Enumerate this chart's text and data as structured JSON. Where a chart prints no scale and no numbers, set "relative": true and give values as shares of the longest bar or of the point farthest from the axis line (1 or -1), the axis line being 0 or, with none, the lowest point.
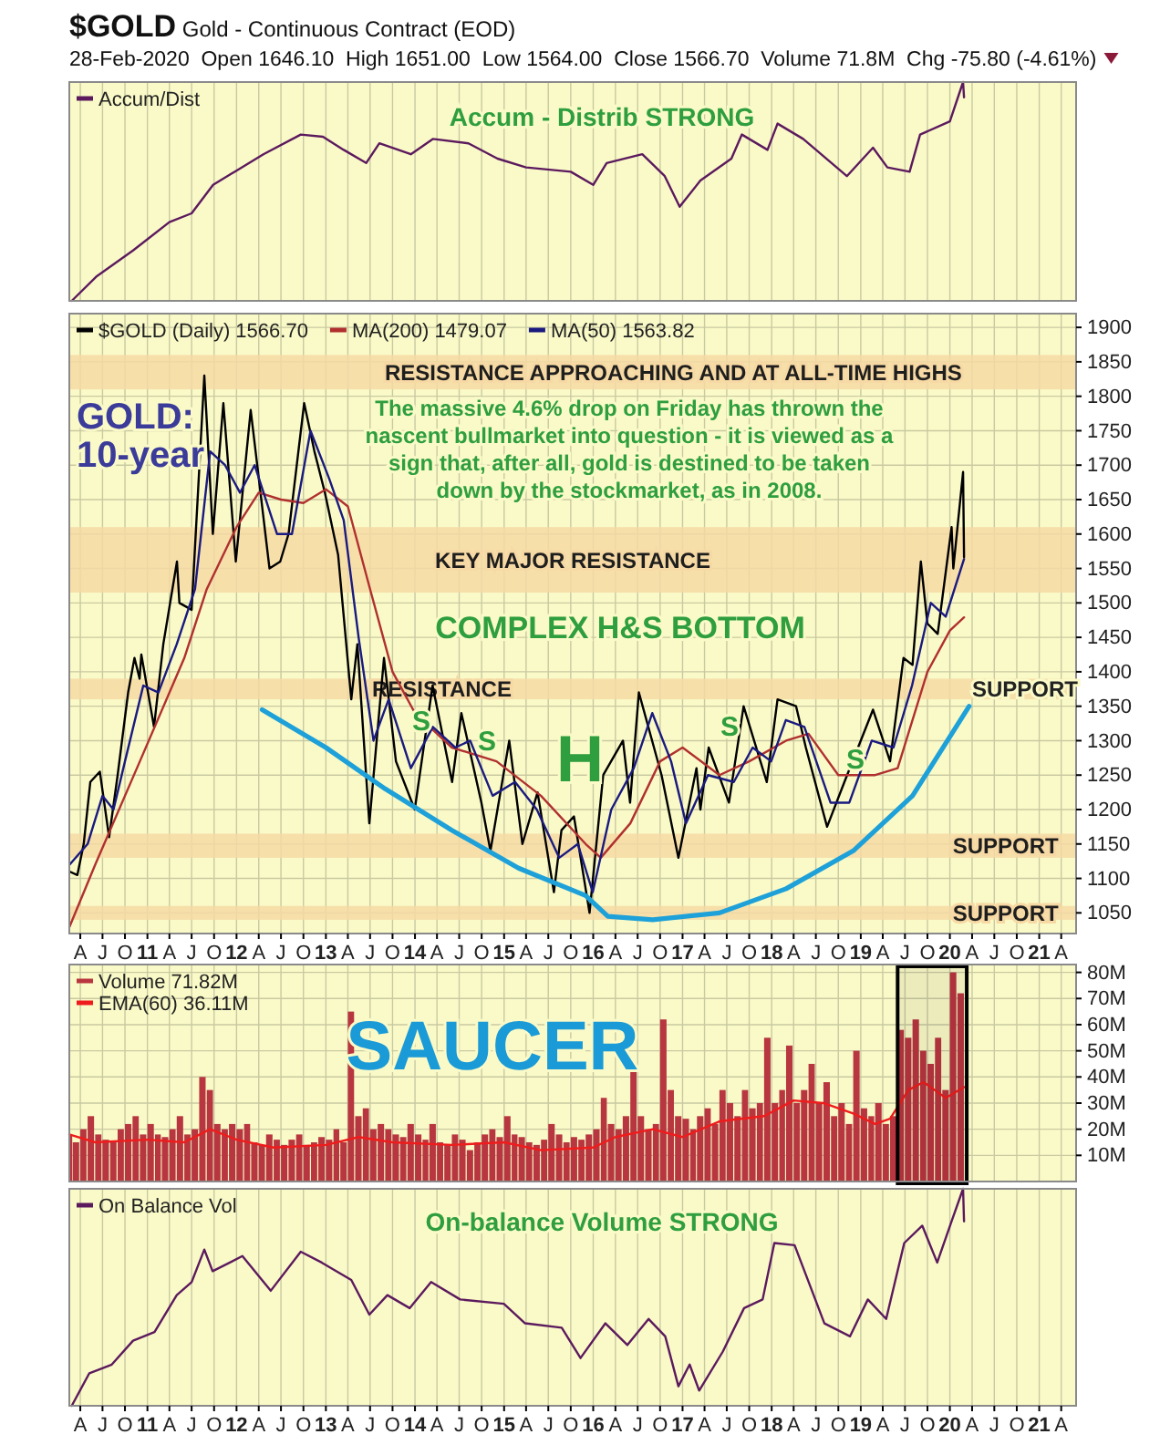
{
  "chart_data": [
    {
      "type": "line",
      "title": "$GOLD Gold - Continuous Contract (EOD)",
      "subtitle": "28-Feb-2020  Open 1646.10  High 1651.00  Low 1564.00  Close 1566.70  Volume 71.8M  Chg -75.80 (-4.61%)",
      "relative": true,
      "grid": "x",
      "legend": "top left",
      "tick_labels": false,
      "xlim": [
        "2010-02-15",
        "2021-06-01"
      ],
      "xticks": [
        {
          "value": "2010-04",
          "label": null
        },
        {
          "value": "2010-07",
          "label": null
        },
        {
          "value": "2010-10",
          "label": null
        },
        {
          "value": "2011-01",
          "label": null
        },
        {
          "value": "2011-04",
          "label": null
        },
        {
          "value": "2011-07",
          "label": null
        },
        {
          "value": "2011-10",
          "label": null
        },
        {
          "value": "2012-01",
          "label": null
        },
        {
          "value": "2012-04",
          "label": null
        },
        {
          "value": "2012-07",
          "label": null
        },
        {
          "value": "2012-10",
          "label": null
        },
        {
          "value": "2013-01",
          "label": null
        },
        {
          "value": "2013-04",
          "label": null
        },
        {
          "value": "2013-07",
          "label": null
        },
        {
          "value": "2013-10",
          "label": null
        },
        {
          "value": "2014-01",
          "label": null
        },
        {
          "value": "2014-04",
          "label": null
        },
        {
          "value": "2014-07",
          "label": null
        },
        {
          "value": "2014-10",
          "label": null
        },
        {
          "value": "2015-01",
          "label": null
        },
        {
          "value": "2015-04",
          "label": null
        },
        {
          "value": "2015-07",
          "label": null
        },
        {
          "value": "2015-10",
          "label": null
        },
        {
          "value": "2016-01",
          "label": null
        },
        {
          "value": "2016-04",
          "label": null
        },
        {
          "value": "2016-07",
          "label": null
        },
        {
          "value": "2016-10",
          "label": null
        },
        {
          "value": "2017-01",
          "label": null
        },
        {
          "value": "2017-04",
          "label": null
        },
        {
          "value": "2017-07",
          "label": null
        },
        {
          "value": "2017-10",
          "label": null
        },
        {
          "value": "2018-01",
          "label": null
        },
        {
          "value": "2018-04",
          "label": null
        },
        {
          "value": "2018-07",
          "label": null
        },
        {
          "value": "2018-10",
          "label": null
        },
        {
          "value": "2019-01",
          "label": null
        },
        {
          "value": "2019-04",
          "label": null
        },
        {
          "value": "2019-07",
          "label": null
        },
        {
          "value": "2019-10",
          "label": null
        },
        {
          "value": "2020-01",
          "label": null
        },
        {
          "value": "2020-04",
          "label": null
        },
        {
          "value": "2020-07",
          "label": null
        },
        {
          "value": "2020-10",
          "label": null
        },
        {
          "value": "2021-01",
          "label": null
        },
        {
          "value": "2021-04",
          "label": null
        }
      ],
      "x": [
        "2010-02-25",
        "2010-06-05",
        "2010-11-03",
        "2011-04-01",
        "2011-07-01",
        "2011-09-27",
        "2011-12-24",
        "2012-04-20",
        "2012-09-20",
        "2012-12-20",
        "2013-03-15",
        "2013-06-15",
        "2013-08-08",
        "2013-12-15",
        "2014-03-15",
        "2014-08-08",
        "2014-12-05",
        "2015-04-01",
        "2015-10-01",
        "2016-01-01",
        "2016-02-25",
        "2016-07-20",
        "2016-10-20",
        "2016-12-20",
        "2017-03-15",
        "2017-07-20",
        "2017-09-01",
        "2017-12-15",
        "2018-01-25",
        "2018-05-10",
        "2018-11-05",
        "2019-02-20",
        "2019-04-20",
        "2019-07-20",
        "2019-09-01",
        "2020-01-01",
        "2020-02-24",
        "2020-02-28"
      ],
      "series": [
        {
          "name": "Accum/Dist",
          "color": "#5c1a5e",
          "values": [
            0,
            0.11,
            0.23,
            0.36,
            0.4,
            0.53,
            0.59,
            0.67,
            0.76,
            0.75,
            0.69,
            0.63,
            0.72,
            0.67,
            0.74,
            0.72,
            0.65,
            0.61,
            0.59,
            0.53,
            0.63,
            0.67,
            0.57,
            0.43,
            0.55,
            0.65,
            0.76,
            0.69,
            0.81,
            0.74,
            0.57,
            0.7,
            0.61,
            0.59,
            0.76,
            0.82,
            1,
            0.93
          ]
        }
      ],
      "annotations": [
        "Accum - Distrib STRONG"
      ]
    },
    {
      "type": "line",
      "grid": true,
      "legend": "top left",
      "xlim": [
        "2010-02-15",
        "2021-06-01"
      ],
      "xticks": [
        {
          "value": "2010-04",
          "label": "A"
        },
        {
          "value": "2010-07",
          "label": "J"
        },
        {
          "value": "2010-10",
          "label": "O"
        },
        {
          "value": "2011-01",
          "label": "11"
        },
        {
          "value": "2011-04",
          "label": "A"
        },
        {
          "value": "2011-07",
          "label": "J"
        },
        {
          "value": "2011-10",
          "label": "O"
        },
        {
          "value": "2012-01",
          "label": "12"
        },
        {
          "value": "2012-04",
          "label": "A"
        },
        {
          "value": "2012-07",
          "label": "J"
        },
        {
          "value": "2012-10",
          "label": "O"
        },
        {
          "value": "2013-01",
          "label": "13"
        },
        {
          "value": "2013-04",
          "label": "A"
        },
        {
          "value": "2013-07",
          "label": "J"
        },
        {
          "value": "2013-10",
          "label": "O"
        },
        {
          "value": "2014-01",
          "label": "14"
        },
        {
          "value": "2014-04",
          "label": "A"
        },
        {
          "value": "2014-07",
          "label": "J"
        },
        {
          "value": "2014-10",
          "label": "O"
        },
        {
          "value": "2015-01",
          "label": "15"
        },
        {
          "value": "2015-04",
          "label": "A"
        },
        {
          "value": "2015-07",
          "label": "J"
        },
        {
          "value": "2015-10",
          "label": "O"
        },
        {
          "value": "2016-01",
          "label": "16"
        },
        {
          "value": "2016-04",
          "label": "A"
        },
        {
          "value": "2016-07",
          "label": "J"
        },
        {
          "value": "2016-10",
          "label": "O"
        },
        {
          "value": "2017-01",
          "label": "17"
        },
        {
          "value": "2017-04",
          "label": "A"
        },
        {
          "value": "2017-07",
          "label": "J"
        },
        {
          "value": "2017-10",
          "label": "O"
        },
        {
          "value": "2018-01",
          "label": "18"
        },
        {
          "value": "2018-04",
          "label": "A"
        },
        {
          "value": "2018-07",
          "label": "J"
        },
        {
          "value": "2018-10",
          "label": "O"
        },
        {
          "value": "2019-01",
          "label": "19"
        },
        {
          "value": "2019-04",
          "label": "A"
        },
        {
          "value": "2019-07",
          "label": "J"
        },
        {
          "value": "2019-10",
          "label": "O"
        },
        {
          "value": "2020-01",
          "label": "20"
        },
        {
          "value": "2020-04",
          "label": "A"
        },
        {
          "value": "2020-07",
          "label": "J"
        },
        {
          "value": "2020-10",
          "label": "O"
        },
        {
          "value": "2021-01",
          "label": "21"
        },
        {
          "value": "2021-04",
          "label": "A"
        }
      ],
      "ylim": [
        1020,
        1920
      ],
      "yticks": [
        1050,
        1100,
        1150,
        1200,
        1250,
        1300,
        1350,
        1400,
        1450,
        1500,
        1550,
        1600,
        1650,
        1700,
        1750,
        1800,
        1850,
        1900
      ],
      "bands": [
        {
          "axis": "y",
          "from": 1810,
          "to": 1860,
          "label": "RESISTANCE APPROACHING AND AT ALL-TIME HIGHS",
          "color": "#f6d9a4"
        },
        {
          "axis": "y",
          "from": 1515,
          "to": 1610,
          "label": "KEY MAJOR RESISTANCE",
          "color": "#f6d9a4"
        },
        {
          "axis": "y",
          "from": 1360,
          "to": 1390,
          "label": "RESISTANCE",
          "color": "#f6d9a4"
        },
        {
          "axis": "y",
          "from": 1130,
          "to": 1165,
          "label": "SUPPORT",
          "color": "#f6d9a4"
        },
        {
          "axis": "y",
          "from": 1040,
          "to": 1060,
          "label": "SUPPORT",
          "color": "#f6d9a4"
        }
      ],
      "series": [
        {
          "name": "$GOLD (Daily) 1566.70",
          "color": "#000000",
          "x": [
            "2010-02-16",
            "2010-03-20",
            "2010-04-15",
            "2010-05-12",
            "2010-06-20",
            "2010-07-28",
            "2010-09-01",
            "2010-10-14",
            "2010-11-09",
            "2010-11-30",
            "2010-12-07",
            "2011-01-28",
            "2011-03-07",
            "2011-05-02",
            "2011-05-12",
            "2011-07-01",
            "2011-08-22",
            "2011-09-26",
            "2011-11-08",
            "2011-12-29",
            "2012-02-28",
            "2012-05-15",
            "2012-06-28",
            "2012-08-01",
            "2012-10-04",
            "2012-11-15",
            "2012-12-28",
            "2013-02-20",
            "2013-04-15",
            "2013-05-10",
            "2013-06-28",
            "2013-08-27",
            "2013-10-15",
            "2013-12-31",
            "2014-03-14",
            "2014-06-02",
            "2014-07-10",
            "2014-09-30",
            "2014-11-06",
            "2015-01-22",
            "2015-03-17",
            "2015-05-18",
            "2015-07-24",
            "2015-08-24",
            "2015-10-14",
            "2015-12-17",
            "2016-02-11",
            "2016-05-02",
            "2016-05-31",
            "2016-07-06",
            "2016-10-07",
            "2016-12-15",
            "2017-02-27",
            "2017-03-15",
            "2017-04-18",
            "2017-07-10",
            "2017-09-08",
            "2017-12-12",
            "2018-01-25",
            "2018-04-11",
            "2018-05-21",
            "2018-08-16",
            "2018-10-26",
            "2019-02-20",
            "2019-05-01",
            "2019-06-25",
            "2019-08-01",
            "2019-09-04",
            "2019-10-01",
            "2019-11-12",
            "2020-01-08",
            "2020-01-15",
            "2020-02-24",
            "2020-02-28"
          ],
          "values": [
            1110,
            1105,
            1150,
            1240,
            1255,
            1160,
            1250,
            1370,
            1420,
            1390,
            1425,
            1320,
            1440,
            1560,
            1500,
            1490,
            1830,
            1600,
            1790,
            1560,
            1780,
            1550,
            1560,
            1600,
            1790,
            1720,
            1660,
            1570,
            1360,
            1440,
            1180,
            1420,
            1270,
            1200,
            1380,
            1240,
            1340,
            1210,
            1140,
            1300,
            1150,
            1225,
            1080,
            1170,
            1190,
            1050,
            1250,
            1300,
            1210,
            1370,
            1250,
            1130,
            1260,
            1200,
            1290,
            1210,
            1350,
            1240,
            1360,
            1350,
            1290,
            1175,
            1240,
            1345,
            1270,
            1420,
            1410,
            1560,
            1470,
            1455,
            1610,
            1550,
            1690,
            1566.7
          ]
        },
        {
          "name": "MA(200) 1479.07",
          "color": "#b03030",
          "x": [
            "2010-02-16",
            "2010-06-01",
            "2010-12-01",
            "2011-06-01",
            "2011-09-01",
            "2012-01-01",
            "2012-04-01",
            "2012-07-01",
            "2012-10-01",
            "2013-01-01",
            "2013-04-01",
            "2013-07-01",
            "2013-10-01",
            "2014-01-01",
            "2014-06-01",
            "2014-12-01",
            "2015-06-01",
            "2015-12-01",
            "2016-02-01",
            "2016-06-01",
            "2016-10-01",
            "2017-01-01",
            "2017-06-01",
            "2017-10-01",
            "2018-03-01",
            "2018-06-01",
            "2018-10-01",
            "2019-03-01",
            "2019-06-01",
            "2019-10-01",
            "2020-01-01",
            "2020-02-28"
          ],
          "values": [
            1030,
            1120,
            1270,
            1420,
            1520,
            1610,
            1660,
            1650,
            1645,
            1665,
            1640,
            1520,
            1400,
            1340,
            1290,
            1270,
            1220,
            1150,
            1130,
            1180,
            1270,
            1290,
            1250,
            1270,
            1300,
            1310,
            1250,
            1250,
            1260,
            1400,
            1460,
            1479.07
          ]
        },
        {
          "name": "MA(50) 1563.82",
          "color": "#1a1a80",
          "x": [
            "2010-02-16",
            "2010-05-01",
            "2010-07-01",
            "2010-08-15",
            "2010-10-01",
            "2010-12-15",
            "2011-02-15",
            "2011-05-01",
            "2011-07-15",
            "2011-09-15",
            "2011-11-15",
            "2012-01-15",
            "2012-03-15",
            "2012-06-15",
            "2012-08-15",
            "2012-10-30",
            "2013-01-15",
            "2013-03-15",
            "2013-05-15",
            "2013-07-15",
            "2013-09-15",
            "2013-12-15",
            "2014-03-15",
            "2014-06-15",
            "2014-08-15",
            "2014-11-15",
            "2015-02-15",
            "2015-05-15",
            "2015-08-15",
            "2015-10-30",
            "2015-12-30",
            "2016-03-15",
            "2016-06-15",
            "2016-08-30",
            "2016-11-15",
            "2017-01-15",
            "2017-04-15",
            "2017-07-30",
            "2017-10-15",
            "2017-12-30",
            "2018-02-28",
            "2018-05-15",
            "2018-08-30",
            "2018-11-15",
            "2019-02-15",
            "2019-05-15",
            "2019-07-30",
            "2019-10-15",
            "2019-12-15",
            "2020-02-28"
          ],
          "values": [
            1120,
            1150,
            1220,
            1200,
            1270,
            1380,
            1370,
            1440,
            1520,
            1720,
            1700,
            1660,
            1700,
            1600,
            1600,
            1750,
            1680,
            1620,
            1450,
            1300,
            1360,
            1260,
            1320,
            1290,
            1300,
            1220,
            1240,
            1200,
            1130,
            1150,
            1080,
            1200,
            1260,
            1340,
            1270,
            1180,
            1250,
            1240,
            1290,
            1270,
            1330,
            1320,
            1210,
            1210,
            1300,
            1290,
            1380,
            1500,
            1480,
            1563.82
          ]
        },
        {
          "color": "#1ea0d8",
          "x": [
            "2012-04-15",
            "2013-01-01",
            "2013-09-01",
            "2014-06-01",
            "2015-03-01",
            "2015-12-01",
            "2016-03-01",
            "2016-09-01",
            "2017-06-01",
            "2018-03-01",
            "2018-12-01",
            "2019-08-01",
            "2020-03-20"
          ],
          "values": [
            1345,
            1290,
            1230,
            1170,
            1115,
            1075,
            1045,
            1040,
            1050,
            1085,
            1140,
            1220,
            1350
          ]
        }
      ],
      "annotations": [
        "GOLD: 10-year",
        "The massive 4.6%  drop on Friday has thrown the nascent bullmarket into question - it is viewed as a sign that, after all, gold is destined to be taken down by the stockmarket, as in 2008.",
        "COMPLEX H&S BOTTOM",
        "S",
        "S",
        "H",
        "S",
        "S",
        "SUPPORT"
      ]
    },
    {
      "type": "bar",
      "grid": true,
      "legend": "top left",
      "tick_labels": "y",
      "xlim": [
        "2010-02-15",
        "2021-06-01"
      ],
      "xticks": [
        {
          "value": "2010-04",
          "label": null
        },
        {
          "value": "2010-07",
          "label": null
        },
        {
          "value": "2010-10",
          "label": null
        },
        {
          "value": "2011-01",
          "label": null
        },
        {
          "value": "2011-04",
          "label": null
        },
        {
          "value": "2011-07",
          "label": null
        },
        {
          "value": "2011-10",
          "label": null
        },
        {
          "value": "2012-01",
          "label": null
        },
        {
          "value": "2012-04",
          "label": null
        },
        {
          "value": "2012-07",
          "label": null
        },
        {
          "value": "2012-10",
          "label": null
        },
        {
          "value": "2013-01",
          "label": null
        },
        {
          "value": "2013-04",
          "label": null
        },
        {
          "value": "2013-07",
          "label": null
        },
        {
          "value": "2013-10",
          "label": null
        },
        {
          "value": "2014-01",
          "label": null
        },
        {
          "value": "2014-04",
          "label": null
        },
        {
          "value": "2014-07",
          "label": null
        },
        {
          "value": "2014-10",
          "label": null
        },
        {
          "value": "2015-01",
          "label": null
        },
        {
          "value": "2015-04",
          "label": null
        },
        {
          "value": "2015-07",
          "label": null
        },
        {
          "value": "2015-10",
          "label": null
        },
        {
          "value": "2016-01",
          "label": null
        },
        {
          "value": "2016-04",
          "label": null
        },
        {
          "value": "2016-07",
          "label": null
        },
        {
          "value": "2016-10",
          "label": null
        },
        {
          "value": "2017-01",
          "label": null
        },
        {
          "value": "2017-04",
          "label": null
        },
        {
          "value": "2017-07",
          "label": null
        },
        {
          "value": "2017-10",
          "label": null
        },
        {
          "value": "2018-01",
          "label": null
        },
        {
          "value": "2018-04",
          "label": null
        },
        {
          "value": "2018-07",
          "label": null
        },
        {
          "value": "2018-10",
          "label": null
        },
        {
          "value": "2019-01",
          "label": null
        },
        {
          "value": "2019-04",
          "label": null
        },
        {
          "value": "2019-07",
          "label": null
        },
        {
          "value": "2019-10",
          "label": null
        },
        {
          "value": "2020-01",
          "label": null
        },
        {
          "value": "2020-04",
          "label": null
        },
        {
          "value": "2020-07",
          "label": null
        },
        {
          "value": "2020-10",
          "label": null
        },
        {
          "value": "2021-01",
          "label": null
        },
        {
          "value": "2021-04",
          "label": null
        }
      ],
      "ylim": [
        0,
        83
      ],
      "yticks": [
        {
          "value": 10,
          "label": "10M"
        },
        {
          "value": 20,
          "label": "20M"
        },
        {
          "value": 30,
          "label": "30M"
        },
        {
          "value": 40,
          "label": "40M"
        },
        {
          "value": 50,
          "label": "50M"
        },
        {
          "value": 60,
          "label": "60M"
        },
        {
          "value": 70,
          "label": "70M"
        },
        {
          "value": 80,
          "label": "80M"
        }
      ],
      "bands": [
        {
          "axis": "x",
          "from": "2019-06-01",
          "to": "2020-03-10",
          "color": "#000000"
        }
      ],
      "x": [
        "2010-02-15",
        "2010-03",
        "2010-04",
        "2010-05",
        "2010-06",
        "2010-07",
        "2010-08",
        "2010-09",
        "2010-10",
        "2010-11",
        "2010-12",
        "2011-01",
        "2011-02",
        "2011-03",
        "2011-04",
        "2011-05",
        "2011-06",
        "2011-07",
        "2011-08",
        "2011-09",
        "2011-10",
        "2011-11",
        "2011-12",
        "2012-01",
        "2012-02",
        "2012-03",
        "2012-04",
        "2012-05",
        "2012-06",
        "2012-07",
        "2012-08",
        "2012-09",
        "2012-10",
        "2012-11",
        "2012-12",
        "2013-01",
        "2013-02",
        "2013-03",
        "2013-04",
        "2013-05",
        "2013-06",
        "2013-07",
        "2013-08",
        "2013-09",
        "2013-10",
        "2013-11",
        "2013-12",
        "2014-01",
        "2014-02",
        "2014-03",
        "2014-04",
        "2014-05",
        "2014-06",
        "2014-07",
        "2014-08",
        "2014-09",
        "2014-10",
        "2014-11",
        "2014-12",
        "2015-01",
        "2015-02",
        "2015-03",
        "2015-04",
        "2015-05",
        "2015-06",
        "2015-07",
        "2015-08",
        "2015-09",
        "2015-10",
        "2015-11",
        "2015-12",
        "2016-01",
        "2016-02",
        "2016-03",
        "2016-04",
        "2016-05",
        "2016-06",
        "2016-07",
        "2016-08",
        "2016-09",
        "2016-10",
        "2016-11",
        "2016-12",
        "2017-01",
        "2017-02",
        "2017-03",
        "2017-04",
        "2017-05",
        "2017-06",
        "2017-07",
        "2017-08",
        "2017-09",
        "2017-10",
        "2017-11",
        "2017-12",
        "2018-01",
        "2018-02",
        "2018-03",
        "2018-04",
        "2018-05",
        "2018-06",
        "2018-07",
        "2018-08",
        "2018-09",
        "2018-10",
        "2018-11",
        "2018-12",
        "2019-01",
        "2019-02",
        "2019-03",
        "2019-04",
        "2019-05",
        "2019-06",
        "2019-07",
        "2019-08",
        "2019-09",
        "2019-10",
        "2019-11",
        "2019-12",
        "2020-01",
        "2020-02"
      ],
      "series": [
        {
          "name": "Volume 71.82M",
          "color": "#b8363f",
          "values": [
            18,
            15,
            20,
            25,
            18,
            16,
            15,
            20,
            22,
            25,
            18,
            22,
            18,
            17,
            20,
            25,
            18,
            20,
            40,
            35,
            22,
            20,
            22,
            20,
            22,
            15,
            14,
            18,
            16,
            14,
            16,
            18,
            14,
            15,
            17,
            16,
            20,
            15,
            65,
            25,
            28,
            20,
            22,
            20,
            18,
            17,
            22,
            18,
            16,
            22,
            15,
            14,
            18,
            16,
            12,
            15,
            18,
            20,
            17,
            25,
            18,
            17,
            15,
            14,
            16,
            22,
            18,
            15,
            17,
            16,
            18,
            20,
            32,
            22,
            20,
            25,
            43,
            25,
            20,
            22,
            62,
            35,
            25,
            24,
            20,
            25,
            28,
            22,
            35,
            30,
            25,
            35,
            28,
            30,
            55,
            30,
            35,
            52,
            30,
            35,
            45,
            30,
            38,
            25,
            30,
            22,
            50,
            28,
            25,
            30,
            22,
            25,
            58,
            55,
            62,
            50,
            45,
            55,
            35,
            80,
            72
          ]
        },
        {
          "name": "EMA(60) 36.11M",
          "type": "line",
          "color": "#ee1c1c",
          "x": [
            "2010-02-15",
            "2010-06-01",
            "2011-01-01",
            "2011-06-01",
            "2011-09-15",
            "2012-01-01",
            "2012-06-01",
            "2013-01-01",
            "2013-05-15",
            "2013-10-01",
            "2014-06-01",
            "2015-01-01",
            "2015-06-01",
            "2016-01-01",
            "2016-04-01",
            "2016-09-01",
            "2017-01-01",
            "2017-06-01",
            "2017-12-01",
            "2018-04-01",
            "2018-08-01",
            "2018-12-01",
            "2019-03-01",
            "2019-05-01",
            "2019-07-15",
            "2019-09-15",
            "2019-12-15",
            "2020-02-28"
          ],
          "values": [
            18,
            15,
            16,
            15,
            20,
            16,
            13,
            14,
            17,
            15,
            14,
            15,
            12,
            13,
            17,
            20,
            17,
            23,
            25,
            31,
            30,
            26,
            22,
            24,
            35,
            38,
            32,
            36.11
          ]
        }
      ],
      "annotations": [
        "SAUCER"
      ]
    },
    {
      "type": "line",
      "relative": true,
      "grid": "x",
      "legend": "top left",
      "tick_labels": "x",
      "xlim": [
        "2010-02-15",
        "2021-06-01"
      ],
      "xticks": [
        {
          "value": "2010-04",
          "label": "A"
        },
        {
          "value": "2010-07",
          "label": "J"
        },
        {
          "value": "2010-10",
          "label": "O"
        },
        {
          "value": "2011-01",
          "label": "11"
        },
        {
          "value": "2011-04",
          "label": "A"
        },
        {
          "value": "2011-07",
          "label": "J"
        },
        {
          "value": "2011-10",
          "label": "O"
        },
        {
          "value": "2012-01",
          "label": "12"
        },
        {
          "value": "2012-04",
          "label": "A"
        },
        {
          "value": "2012-07",
          "label": "J"
        },
        {
          "value": "2012-10",
          "label": "O"
        },
        {
          "value": "2013-01",
          "label": "13"
        },
        {
          "value": "2013-04",
          "label": "A"
        },
        {
          "value": "2013-07",
          "label": "J"
        },
        {
          "value": "2013-10",
          "label": "O"
        },
        {
          "value": "2014-01",
          "label": "14"
        },
        {
          "value": "2014-04",
          "label": "A"
        },
        {
          "value": "2014-07",
          "label": "J"
        },
        {
          "value": "2014-10",
          "label": "O"
        },
        {
          "value": "2015-01",
          "label": "15"
        },
        {
          "value": "2015-04",
          "label": "A"
        },
        {
          "value": "2015-07",
          "label": "J"
        },
        {
          "value": "2015-10",
          "label": "O"
        },
        {
          "value": "2016-01",
          "label": "16"
        },
        {
          "value": "2016-04",
          "label": "A"
        },
        {
          "value": "2016-07",
          "label": "J"
        },
        {
          "value": "2016-10",
          "label": "O"
        },
        {
          "value": "2017-01",
          "label": "17"
        },
        {
          "value": "2017-04",
          "label": "A"
        },
        {
          "value": "2017-07",
          "label": "J"
        },
        {
          "value": "2017-10",
          "label": "O"
        },
        {
          "value": "2018-01",
          "label": "18"
        },
        {
          "value": "2018-04",
          "label": "A"
        },
        {
          "value": "2018-07",
          "label": "J"
        },
        {
          "value": "2018-10",
          "label": "O"
        },
        {
          "value": "2019-01",
          "label": "19"
        },
        {
          "value": "2019-04",
          "label": "A"
        },
        {
          "value": "2019-07",
          "label": "J"
        },
        {
          "value": "2019-10",
          "label": "O"
        },
        {
          "value": "2020-01",
          "label": "20"
        },
        {
          "value": "2020-04",
          "label": "A"
        },
        {
          "value": "2020-07",
          "label": "J"
        },
        {
          "value": "2020-10",
          "label": "O"
        },
        {
          "value": "2021-01",
          "label": "21"
        },
        {
          "value": "2021-04",
          "label": "A"
        }
      ],
      "x": [
        "2010-02-25",
        "2010-05-08",
        "2010-08-08",
        "2010-11-03",
        "2011-01-30",
        "2011-05-01",
        "2011-07-01",
        "2011-08-22",
        "2011-09-25",
        "2012-01-25",
        "2012-05-20",
        "2012-09-20",
        "2012-12-15",
        "2013-04-15",
        "2013-06-28",
        "2013-09-10",
        "2013-12-10",
        "2014-03-08",
        "2014-07-05",
        "2014-12-31",
        "2015-03-28",
        "2015-08-25",
        "2015-11-10",
        "2016-02-20",
        "2016-05-20",
        "2016-08-15",
        "2016-10-22",
        "2016-12-15",
        "2017-01-30",
        "2017-03-10",
        "2017-06-15",
        "2017-09-10",
        "2017-11-25",
        "2018-01-12",
        "2018-04-05",
        "2018-08-05",
        "2018-11-18",
        "2019-01-30",
        "2019-04-15",
        "2019-06-28",
        "2019-09-10",
        "2019-11-10",
        "2020-01-08",
        "2020-02-24",
        "2020-02-28"
      ],
      "series": [
        {
          "name": "On Balance Vol",
          "color": "#5c1a5e",
          "values": [
            0,
            0.15,
            0.19,
            0.3,
            0.34,
            0.51,
            0.57,
            0.72,
            0.62,
            0.69,
            0.53,
            0.71,
            0.66,
            0.58,
            0.42,
            0.51,
            0.45,
            0.57,
            0.49,
            0.47,
            0.38,
            0.36,
            0.22,
            0.38,
            0.28,
            0.4,
            0.32,
            0.09,
            0.19,
            0.07,
            0.25,
            0.45,
            0.49,
            0.75,
            0.74,
            0.38,
            0.32,
            0.49,
            0.4,
            0.75,
            0.83,
            0.66,
            0.85,
            1,
            0.85
          ]
        }
      ],
      "annotations": [
        "On-balance Volume STRONG"
      ]
    }
  ]
}
